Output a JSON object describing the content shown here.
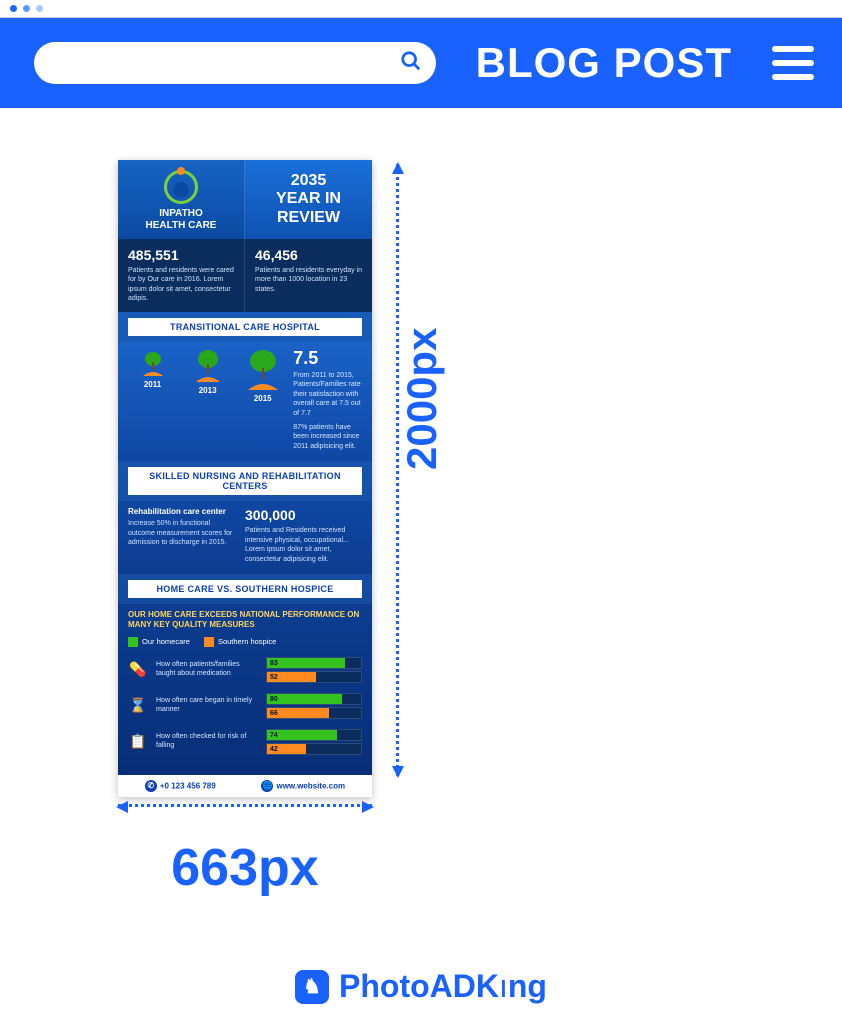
{
  "colors": {
    "brand_blue": "#1a62ff",
    "brand_blue_dark": "#0b3fb3",
    "green": "#34c31e",
    "orange": "#ff8a1f",
    "navy": "#0a2d5e",
    "white": "#ffffff"
  },
  "header": {
    "title": "BLOG POST",
    "search_placeholder": "Search"
  },
  "dimensions": {
    "height_label": "2000px",
    "width_label": "663px"
  },
  "watermark": {
    "brand_left": "PhotoADK",
    "brand_right": "ng",
    "i_glyph": "ı"
  },
  "infographic": {
    "brand_line1": "INPATHO",
    "brand_line2": "HEALTH CARE",
    "year_review": "2035\nYEAR IN\nREVIEW",
    "stat1_num": "485,551",
    "stat1_txt": "Patients and residents were cared for by Our care in 2016. Lorem ipsum dolor sit amet, consectetur adipis.",
    "stat2_num": "46,456",
    "stat2_txt": "Patients and residents everyday in more than 1000 location in 23 states.",
    "banner1": "TRANSITIONAL CARE HOSPITAL",
    "trees": {
      "years": [
        "2011",
        "2013",
        "2015"
      ],
      "heights": [
        18,
        26,
        36
      ],
      "big_num": "7.5",
      "sub1": "From 2011 to 2015, Patients/Families rate their satisfaction with overall care at 7.5 out of 7.7",
      "sub2": "87% patients have been increased since 2011 adipisicing elit."
    },
    "banner2": "SKILLED NURSING AND REHABILITATION CENTERS",
    "rehab_h": "Rehabilitation care center",
    "rehab_txt": "Increase 50% in functional outcome measurement scores for admission to discharge in 2015.",
    "rehab_num": "300,000",
    "rehab_num_txt": "Patients and Residents received intensive physical, occupational... Lorem ipsum dolor sit amet, consectetur adipisicing elit.",
    "banner3": "HOME CARE VS. SOUTHERN HOSPICE",
    "hc_lead": "OUR HOME CARE EXCEEDS NATIONAL PERFORMANCE ON MANY KEY QUALITY MEASURES",
    "legend": {
      "a": "Our homecare",
      "b": "Southern hospice"
    },
    "chart": {
      "type": "bar",
      "series_colors": {
        "a": "#34c31e",
        "b": "#ff8a1f"
      },
      "max": 100,
      "metrics": [
        {
          "label": "How often patients/families taught about medication",
          "a": 83,
          "b": 52
        },
        {
          "label": "How often care began in timely manner",
          "a": 80,
          "b": 66
        },
        {
          "label": "How often checked for risk of falling",
          "a": 74,
          "b": 42
        }
      ]
    },
    "footer": {
      "phone": "+0 123 456 789",
      "web": "www.website.com"
    }
  }
}
